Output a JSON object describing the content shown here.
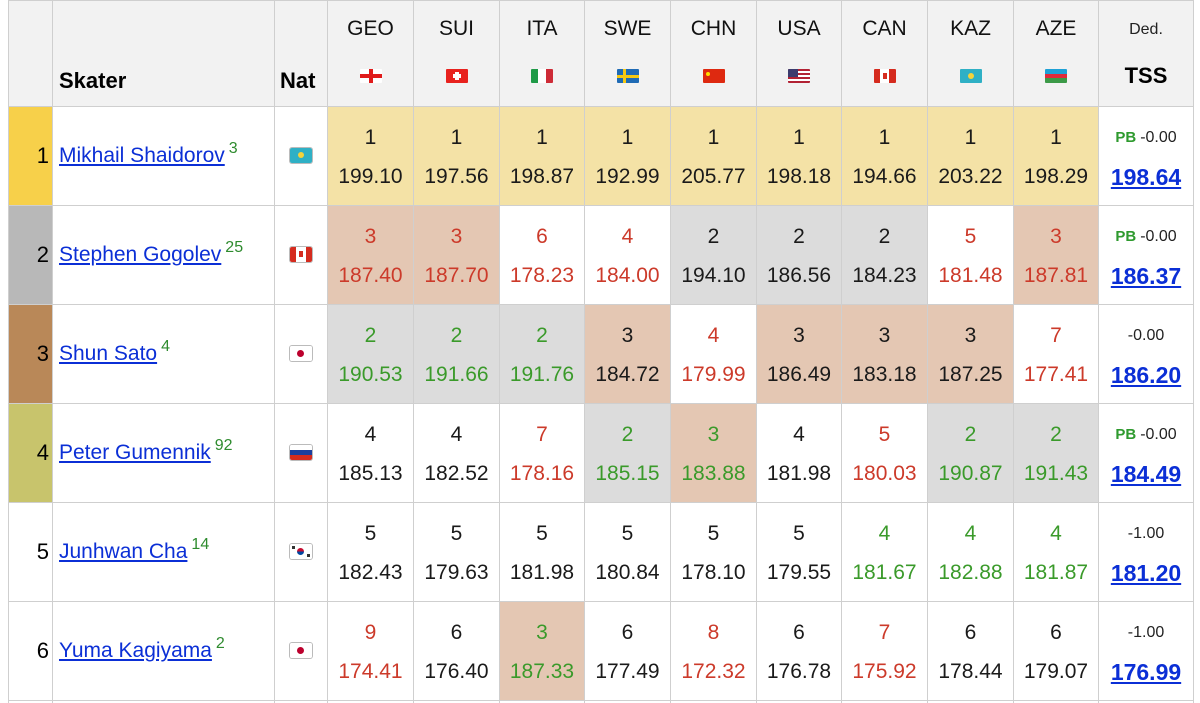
{
  "header": {
    "skater": "Skater",
    "nat": "Nat",
    "ded": "Ded.",
    "tss": "TSS",
    "countries": [
      {
        "code": "GEO",
        "flag": "georgia-flag-icon"
      },
      {
        "code": "SUI",
        "flag": "switzerland-flag-icon"
      },
      {
        "code": "ITA",
        "flag": "italy-flag-icon"
      },
      {
        "code": "SWE",
        "flag": "sweden-flag-icon"
      },
      {
        "code": "CHN",
        "flag": "china-flag-icon"
      },
      {
        "code": "USA",
        "flag": "usa-flag-icon"
      },
      {
        "code": "CAN",
        "flag": "canada-flag-icon"
      },
      {
        "code": "KAZ",
        "flag": "kazakhstan-flag-icon"
      },
      {
        "code": "AZE",
        "flag": "azerbaijan-flag-icon"
      }
    ]
  },
  "colors": {
    "gold": "#f4e2a6",
    "silver": "#dcdcdc",
    "bronze": "#e4c7b3",
    "rank_gold": "#f7d04a",
    "rank_silver": "#b8b8b8",
    "rank_bronze": "#b98858",
    "rank_olive": "#c8c46c",
    "better": "#3a9a2a",
    "worse": "#cc3a2a",
    "link": "#0b2fd6"
  },
  "rows": [
    {
      "rank": "1",
      "rank_color": "gold",
      "name": "Mikhail Shaidorov",
      "sup": "3",
      "nat": "kazakhstan-flag-icon",
      "pb": "PB",
      "ded": "-0.00",
      "total": "198.64",
      "cells": [
        {
          "p": "1",
          "s": "199.10",
          "bg": "gold",
          "t": "black"
        },
        {
          "p": "1",
          "s": "197.56",
          "bg": "gold",
          "t": "black"
        },
        {
          "p": "1",
          "s": "198.87",
          "bg": "gold",
          "t": "black"
        },
        {
          "p": "1",
          "s": "192.99",
          "bg": "gold",
          "t": "black"
        },
        {
          "p": "1",
          "s": "205.77",
          "bg": "gold",
          "t": "black"
        },
        {
          "p": "1",
          "s": "198.18",
          "bg": "gold",
          "t": "black"
        },
        {
          "p": "1",
          "s": "194.66",
          "bg": "gold",
          "t": "black"
        },
        {
          "p": "1",
          "s": "203.22",
          "bg": "gold",
          "t": "black"
        },
        {
          "p": "1",
          "s": "198.29",
          "bg": "gold",
          "t": "black"
        }
      ]
    },
    {
      "rank": "2",
      "rank_color": "silver",
      "name": "Stephen Gogolev",
      "sup": "25",
      "nat": "canada-flag-icon",
      "pb": "PB",
      "ded": "-0.00",
      "total": "186.37",
      "cells": [
        {
          "p": "3",
          "s": "187.40",
          "bg": "bronze",
          "t": "red"
        },
        {
          "p": "3",
          "s": "187.70",
          "bg": "bronze",
          "t": "red"
        },
        {
          "p": "6",
          "s": "178.23",
          "bg": "white",
          "t": "red"
        },
        {
          "p": "4",
          "s": "184.00",
          "bg": "white",
          "t": "red"
        },
        {
          "p": "2",
          "s": "194.10",
          "bg": "silver",
          "t": "black"
        },
        {
          "p": "2",
          "s": "186.56",
          "bg": "silver",
          "t": "black"
        },
        {
          "p": "2",
          "s": "184.23",
          "bg": "silver",
          "t": "black"
        },
        {
          "p": "5",
          "s": "181.48",
          "bg": "white",
          "t": "red"
        },
        {
          "p": "3",
          "s": "187.81",
          "bg": "bronze",
          "t": "red"
        }
      ]
    },
    {
      "rank": "3",
      "rank_color": "bronze",
      "name": "Shun Sato",
      "sup": "4",
      "nat": "japan-flag-icon",
      "pb": "",
      "ded": "-0.00",
      "total": "186.20",
      "cells": [
        {
          "p": "2",
          "s": "190.53",
          "bg": "silver",
          "t": "green"
        },
        {
          "p": "2",
          "s": "191.66",
          "bg": "silver",
          "t": "green"
        },
        {
          "p": "2",
          "s": "191.76",
          "bg": "silver",
          "t": "green"
        },
        {
          "p": "3",
          "s": "184.72",
          "bg": "bronze",
          "t": "black"
        },
        {
          "p": "4",
          "s": "179.99",
          "bg": "white",
          "t": "red"
        },
        {
          "p": "3",
          "s": "186.49",
          "bg": "bronze",
          "t": "black"
        },
        {
          "p": "3",
          "s": "183.18",
          "bg": "bronze",
          "t": "black"
        },
        {
          "p": "3",
          "s": "187.25",
          "bg": "bronze",
          "t": "black"
        },
        {
          "p": "7",
          "s": "177.41",
          "bg": "white",
          "t": "red"
        }
      ]
    },
    {
      "rank": "4",
      "rank_color": "olive",
      "name": "Peter Gumennik",
      "sup": "92",
      "nat": "russia-flag-icon",
      "pb": "PB",
      "ded": "-0.00",
      "total": "184.49",
      "cells": [
        {
          "p": "4",
          "s": "185.13",
          "bg": "white",
          "t": "black"
        },
        {
          "p": "4",
          "s": "182.52",
          "bg": "white",
          "t": "black"
        },
        {
          "p": "7",
          "s": "178.16",
          "bg": "white",
          "t": "red"
        },
        {
          "p": "2",
          "s": "185.15",
          "bg": "silver",
          "t": "green"
        },
        {
          "p": "3",
          "s": "183.88",
          "bg": "bronze",
          "t": "green"
        },
        {
          "p": "4",
          "s": "181.98",
          "bg": "white",
          "t": "black"
        },
        {
          "p": "5",
          "s": "180.03",
          "bg": "white",
          "t": "red"
        },
        {
          "p": "2",
          "s": "190.87",
          "bg": "silver",
          "t": "green"
        },
        {
          "p": "2",
          "s": "191.43",
          "bg": "silver",
          "t": "green"
        }
      ]
    },
    {
      "rank": "5",
      "rank_color": "white",
      "name": "Junhwan Cha",
      "sup": "14",
      "nat": "south-korea-flag-icon",
      "pb": "",
      "ded": "-1.00",
      "total": "181.20",
      "cells": [
        {
          "p": "5",
          "s": "182.43",
          "bg": "white",
          "t": "black"
        },
        {
          "p": "5",
          "s": "179.63",
          "bg": "white",
          "t": "black"
        },
        {
          "p": "5",
          "s": "181.98",
          "bg": "white",
          "t": "black"
        },
        {
          "p": "5",
          "s": "180.84",
          "bg": "white",
          "t": "black"
        },
        {
          "p": "5",
          "s": "178.10",
          "bg": "white",
          "t": "black"
        },
        {
          "p": "5",
          "s": "179.55",
          "bg": "white",
          "t": "black"
        },
        {
          "p": "4",
          "s": "181.67",
          "bg": "white",
          "t": "green"
        },
        {
          "p": "4",
          "s": "182.88",
          "bg": "white",
          "t": "green"
        },
        {
          "p": "4",
          "s": "181.87",
          "bg": "white",
          "t": "green"
        }
      ]
    },
    {
      "rank": "6",
      "rank_color": "white",
      "name": "Yuma Kagiyama",
      "sup": "2",
      "nat": "japan-flag-icon",
      "pb": "",
      "ded": "-1.00",
      "total": "176.99",
      "cells": [
        {
          "p": "9",
          "s": "174.41",
          "bg": "white",
          "t": "red"
        },
        {
          "p": "6",
          "s": "176.40",
          "bg": "white",
          "t": "black"
        },
        {
          "p": "3",
          "s": "187.33",
          "bg": "bronze",
          "t": "green"
        },
        {
          "p": "6",
          "s": "177.49",
          "bg": "white",
          "t": "black"
        },
        {
          "p": "8",
          "s": "172.32",
          "bg": "white",
          "t": "red"
        },
        {
          "p": "6",
          "s": "176.78",
          "bg": "white",
          "t": "black"
        },
        {
          "p": "7",
          "s": "175.92",
          "bg": "white",
          "t": "red"
        },
        {
          "p": "6",
          "s": "178.44",
          "bg": "white",
          "t": "black"
        },
        {
          "p": "6",
          "s": "179.07",
          "bg": "white",
          "t": "black"
        }
      ]
    }
  ]
}
